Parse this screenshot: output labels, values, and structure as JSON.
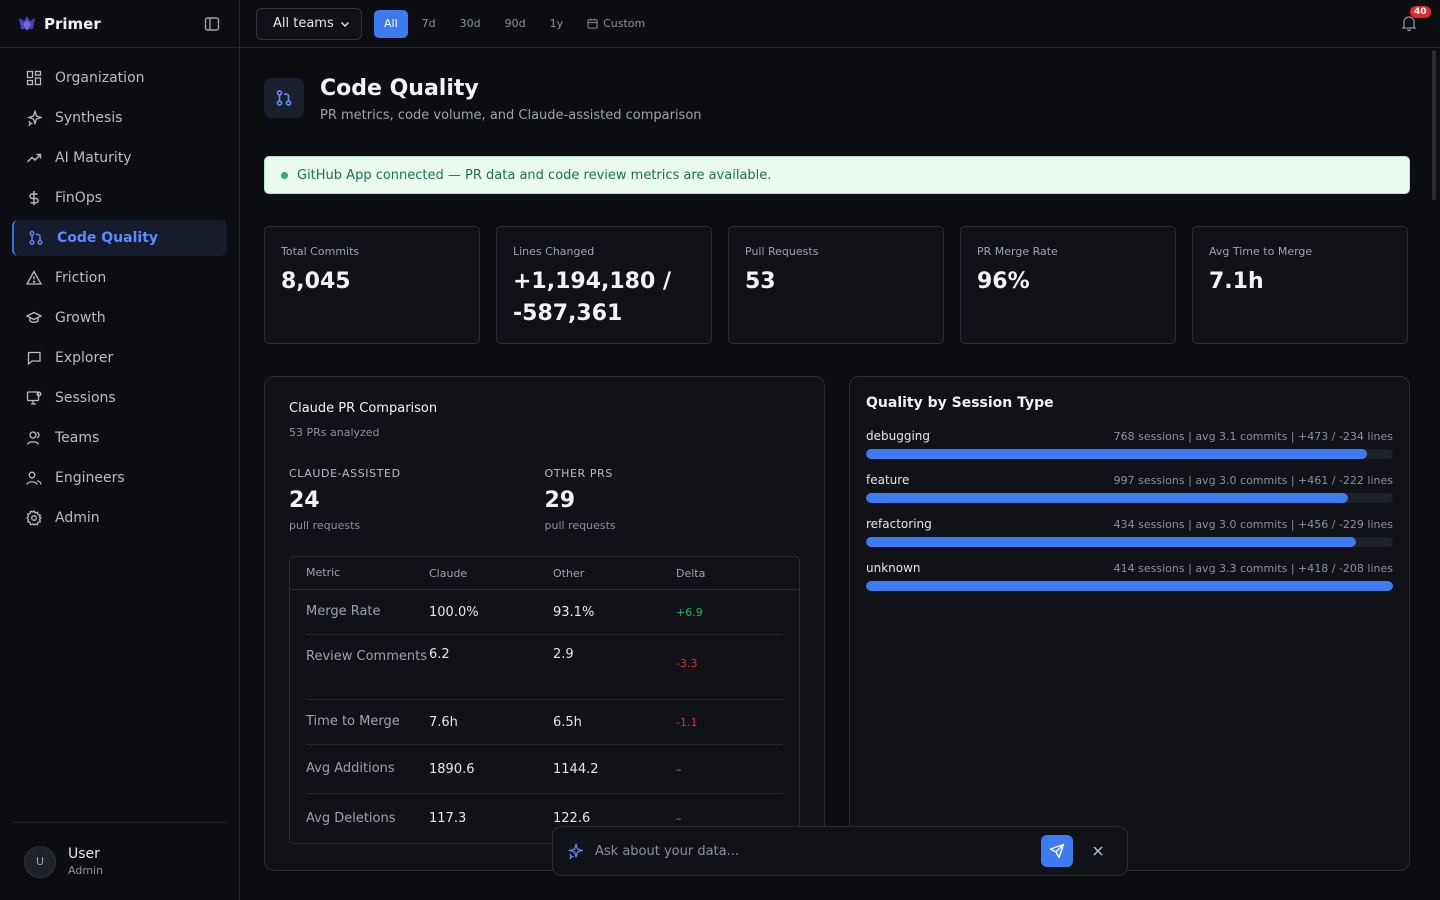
{
  "app": {
    "name": "Primer"
  },
  "sidebar": {
    "items": [
      {
        "label": "Organization",
        "icon": "grid-icon"
      },
      {
        "label": "Synthesis",
        "icon": "sparkles-icon"
      },
      {
        "label": "AI Maturity",
        "icon": "trending-up-icon"
      },
      {
        "label": "FinOps",
        "icon": "dollar-icon"
      },
      {
        "label": "Code Quality",
        "icon": "git-pull-request-icon",
        "active": true
      },
      {
        "label": "Friction",
        "icon": "warning-icon"
      },
      {
        "label": "Growth",
        "icon": "graduation-cap-icon"
      },
      {
        "label": "Explorer",
        "icon": "message-square-icon"
      },
      {
        "label": "Sessions",
        "icon": "monitor-icon"
      },
      {
        "label": "Teams",
        "icon": "user-icon"
      },
      {
        "label": "Engineers",
        "icon": "users-icon"
      },
      {
        "label": "Admin",
        "icon": "gear-icon"
      }
    ],
    "user": {
      "initial": "U",
      "name": "User",
      "role": "Admin"
    }
  },
  "topbar": {
    "team_select": "All teams",
    "ranges": [
      "All",
      "7d",
      "30d",
      "90d",
      "1y",
      "Custom"
    ],
    "active_range": "All",
    "notifications": "40"
  },
  "page": {
    "title": "Code Quality",
    "subtitle": "PR metrics, code volume, and Claude-assisted comparison",
    "banner": "GitHub App connected — PR data and code review metrics are available."
  },
  "stats": [
    {
      "label": "Total Commits",
      "value": "8,045"
    },
    {
      "label": "Lines Changed",
      "value": "+1,194,180 / -587,361"
    },
    {
      "label": "Pull Requests",
      "value": "53"
    },
    {
      "label": "PR Merge Rate",
      "value": "96%"
    },
    {
      "label": "Avg Time to Merge",
      "value": "7.1h"
    }
  ],
  "comparison": {
    "title": "Claude PR Comparison",
    "subtitle": "53 PRs analyzed",
    "claude": {
      "label": "CLAUDE-ASSISTED",
      "value": "24",
      "unit": "pull requests"
    },
    "other": {
      "label": "OTHER PRS",
      "value": "29",
      "unit": "pull requests"
    },
    "columns": [
      "Metric",
      "Claude",
      "Other",
      "Delta"
    ],
    "rows": [
      {
        "metric": "Merge Rate",
        "claude": "100.0%",
        "other": "93.1%",
        "delta": "+6.9",
        "tone": "pos"
      },
      {
        "metric": "Review Comments",
        "claude": "6.2",
        "other": "2.9",
        "delta": "-3.3",
        "tone": "neg"
      },
      {
        "metric": "Time to Merge",
        "claude": "7.6h",
        "other": "6.5h",
        "delta": "-1.1",
        "tone": "neg"
      },
      {
        "metric": "Avg Additions",
        "claude": "1890.6",
        "other": "1144.2",
        "delta": "–",
        "tone": "neu"
      },
      {
        "metric": "Avg Deletions",
        "claude": "117.3",
        "other": "122.6",
        "delta": "–",
        "tone": "neu"
      }
    ]
  },
  "sessions": {
    "title": "Quality by Session Type",
    "items": [
      {
        "name": "debugging",
        "meta": "768 sessions | avg 3.1 commits | +473 / -234 lines",
        "fill": 0.95
      },
      {
        "name": "feature",
        "meta": "997 sessions | avg 3.0 commits | +461 / -222 lines",
        "fill": 0.915
      },
      {
        "name": "refactoring",
        "meta": "434 sessions | avg 3.0 commits | +456 / -229 lines",
        "fill": 0.93
      },
      {
        "name": "unknown",
        "meta": "414 sessions | avg 3.3 commits | +418 / -208 lines",
        "fill": 1.0
      }
    ]
  },
  "ask": {
    "placeholder": "Ask about your data..."
  },
  "colors": {
    "accent": "#3d7bf2",
    "positive": "#22b46a",
    "negative": "#e5292e"
  }
}
